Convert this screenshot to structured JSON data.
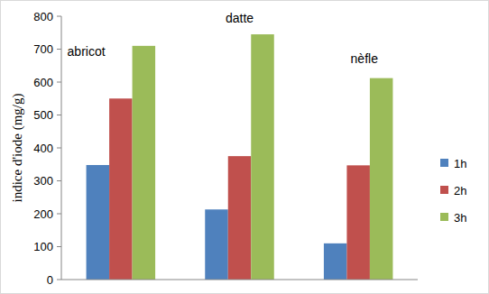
{
  "chart_data": {
    "type": "bar",
    "y_label": "indice d'iode (mg/g)",
    "categories": [
      "abricot",
      "datte",
      "nèfle"
    ],
    "series": [
      {
        "name": "1h",
        "color": "#4f81bd",
        "values": [
          348,
          213,
          110
        ]
      },
      {
        "name": "2h",
        "color": "#c0504d",
        "values": [
          550,
          375,
          347
        ]
      },
      {
        "name": "3h",
        "color": "#9bbb59",
        "values": [
          710,
          745,
          612
        ]
      }
    ],
    "ylim": [
      0,
      800
    ],
    "yticks": [
      0,
      100,
      200,
      300,
      400,
      500,
      600,
      700,
      800
    ],
    "grid": false,
    "legend": "right",
    "tick_labels": "y"
  }
}
